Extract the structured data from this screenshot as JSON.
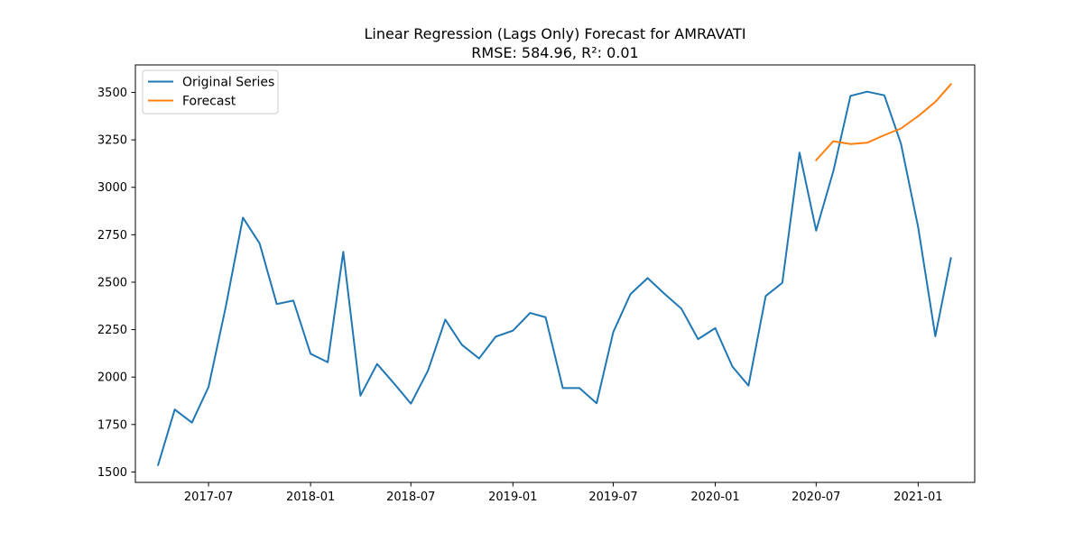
{
  "chart_data": {
    "type": "line",
    "title": "Linear Regression (Lags Only) Forecast for AMRAVATI",
    "subtitle": "RMSE: 584.96, R²: 0.01",
    "xlabel": "",
    "ylabel": "",
    "xlim": [
      "2017-02-19",
      "2021-04-13"
    ],
    "ylim": [
      1445,
      3645
    ],
    "x_ticks": [
      "2017-07",
      "2018-01",
      "2018-07",
      "2019-01",
      "2019-07",
      "2020-01",
      "2020-07",
      "2021-01"
    ],
    "y_ticks": [
      1500,
      1750,
      2000,
      2250,
      2500,
      2750,
      3000,
      3250,
      3500
    ],
    "grid": false,
    "legend_position": "upper left",
    "series": [
      {
        "name": "Original Series",
        "color": "#1f77b4",
        "x": [
          "2017-04",
          "2017-05",
          "2017-06",
          "2017-07",
          "2017-08",
          "2017-09",
          "2017-10",
          "2017-11",
          "2017-12",
          "2018-01",
          "2018-02",
          "2018-03",
          "2018-04",
          "2018-05",
          "2018-06",
          "2018-07",
          "2018-08",
          "2018-09",
          "2018-10",
          "2018-11",
          "2018-12",
          "2019-01",
          "2019-02",
          "2019-03",
          "2019-04",
          "2019-05",
          "2019-06",
          "2019-07",
          "2019-08",
          "2019-09",
          "2019-10",
          "2019-11",
          "2019-12",
          "2020-01",
          "2020-02",
          "2020-03",
          "2020-04",
          "2020-05",
          "2020-06",
          "2020-07",
          "2020-08",
          "2020-09",
          "2020-10",
          "2020-11",
          "2020-12",
          "2021-01",
          "2021-02",
          "2021-03"
        ],
        "values": [
          1537,
          1829,
          1760,
          1948,
          2370,
          2840,
          2705,
          2385,
          2403,
          2123,
          2078,
          2660,
          1902,
          2069,
          1965,
          1860,
          2035,
          2303,
          2170,
          2098,
          2213,
          2245,
          2338,
          2315,
          1942,
          1942,
          1862,
          2237,
          2437,
          2522,
          2440,
          2360,
          2200,
          2258,
          2055,
          1955,
          2427,
          2497,
          3183,
          2772,
          3085,
          3482,
          3504,
          3485,
          3230,
          2790,
          2215,
          2627
        ]
      },
      {
        "name": "Forecast",
        "color": "#ff7f0e",
        "x": [
          "2020-07",
          "2020-08",
          "2020-09",
          "2020-10",
          "2020-11",
          "2020-12",
          "2021-01",
          "2021-02",
          "2021-03"
        ],
        "values": [
          3143,
          3243,
          3228,
          3235,
          3275,
          3310,
          3375,
          3450,
          3543
        ]
      }
    ]
  }
}
